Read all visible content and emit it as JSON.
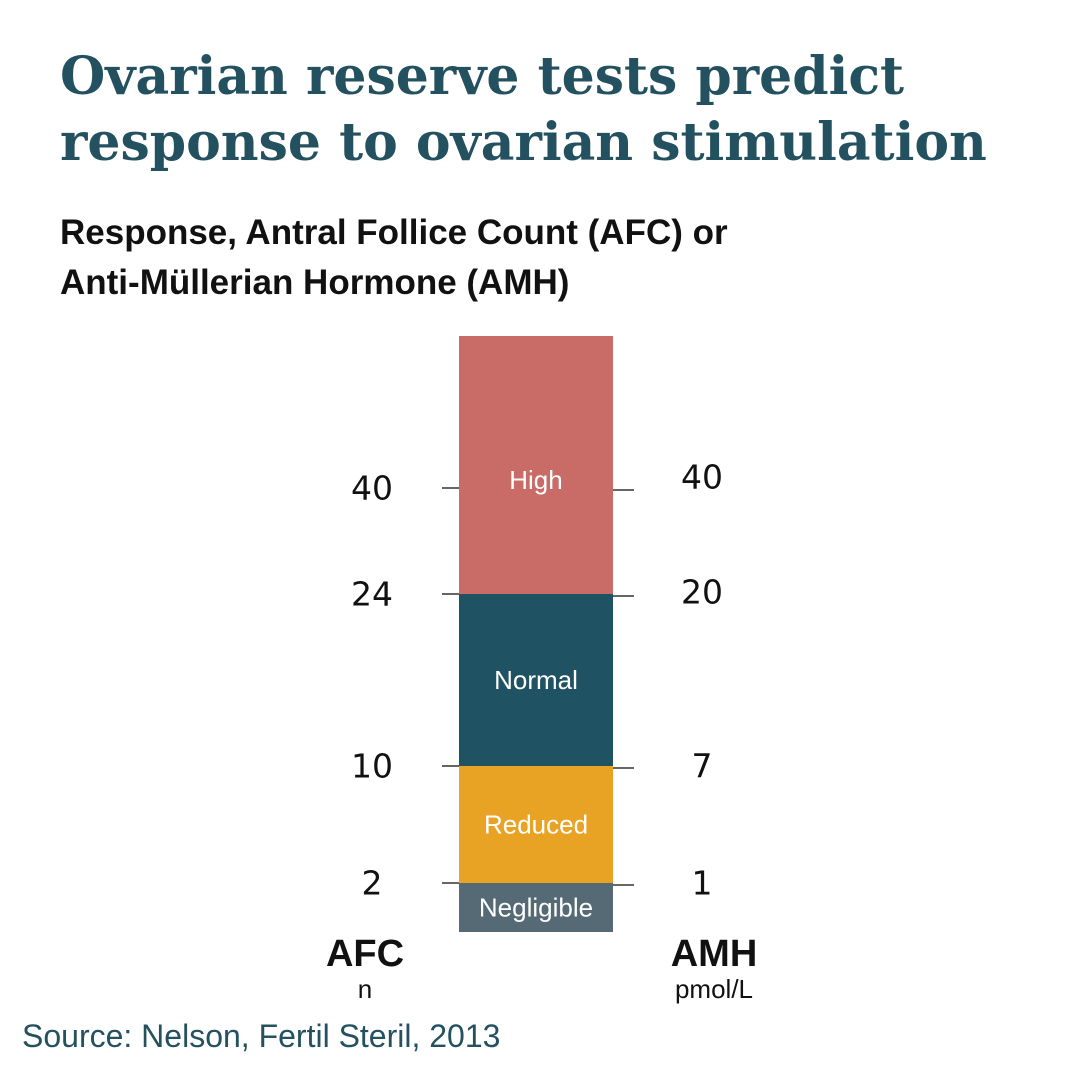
{
  "title_line1": "Ovarian reserve tests predict",
  "title_line2": "response to ovarian stimulation",
  "subtitle_line1": "Response,  Antral Follice Count (AFC) or",
  "subtitle_line2": "Anti-Müllerian Hormone (AMH)",
  "source": "Source: Nelson, Fertil Steril, 2013",
  "chart_data": {
    "type": "bar",
    "orientation": "vertical-stacked",
    "segments": [
      {
        "label": "Negligible",
        "color": "#566a76",
        "afc_below": "2",
        "amh_below": "1"
      },
      {
        "label": "Reduced",
        "color": "#e8a224",
        "afc_below": "10",
        "amh_below": "7"
      },
      {
        "label": "Normal",
        "color": "#1f5263",
        "afc_below": "24",
        "amh_below": "20"
      },
      {
        "label": "High",
        "color": "#c96c67",
        "afc_below": "",
        "amh_below": ""
      }
    ],
    "afc_ticks": [
      "2",
      "10",
      "24",
      "40"
    ],
    "amh_ticks": [
      "1",
      "7",
      "20",
      "40"
    ],
    "left_axis": {
      "name": "AFC",
      "unit": "n"
    },
    "right_axis": {
      "name": "AMH",
      "unit": "pmol/L"
    }
  }
}
